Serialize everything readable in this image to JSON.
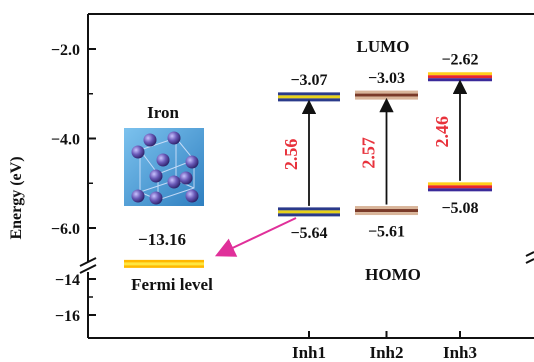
{
  "chart_data": {
    "type": "energy-level-diagram",
    "ylabel": "Energy (eV)",
    "yticks_upper": [
      "-2.0",
      "-4.0",
      "-6.0"
    ],
    "yticks_lower": [
      "-14",
      "-16"
    ],
    "ylim_upper": [
      -7.0,
      -1.0
    ],
    "ylim_lower": [
      -16.8,
      -13.0
    ],
    "categories": [
      "Inh1",
      "Inh2",
      "Inh3"
    ],
    "lumo_label": "LUMO",
    "homo_label": "HOMO",
    "molecules": [
      {
        "name": "Inh1",
        "lumo": -3.07,
        "homo": -5.64,
        "gap": 2.56,
        "lumo_text": "-3.07",
        "homo_text": "-5.64",
        "gap_text": "2.56",
        "colors": [
          "#2a3a8a",
          "#e8d21a",
          "#2a3a8a"
        ]
      },
      {
        "name": "Inh2",
        "lumo": -3.03,
        "homo": -5.61,
        "gap": 2.57,
        "lumo_text": "-3.03",
        "homo_text": "-5.61",
        "gap_text": "2.57",
        "colors": [
          "#d9b59a",
          "#7a3a28",
          "#d9b59a"
        ]
      },
      {
        "name": "Inh3",
        "lumo": -2.62,
        "homo": -5.08,
        "gap": 2.46,
        "lumo_text": "-2.62",
        "homo_text": "-5.08",
        "gap_text": "2.46",
        "colors": [
          "#ffcf1a",
          "#e8262c",
          "#3a2a9a"
        ]
      }
    ],
    "iron": {
      "label": "Iron",
      "fermi_level": -13.16,
      "fermi_text": "-13.16",
      "fermi_label": "Fermi level",
      "colors": [
        "#ffb800",
        "#ffe640"
      ]
    },
    "colors": {
      "gap_text": "#e8323c",
      "arrow": "#111111",
      "pink_arrow": "#e0309a",
      "atom": "#5a4aa0",
      "crystal_bg": "#4fa3d8"
    }
  }
}
